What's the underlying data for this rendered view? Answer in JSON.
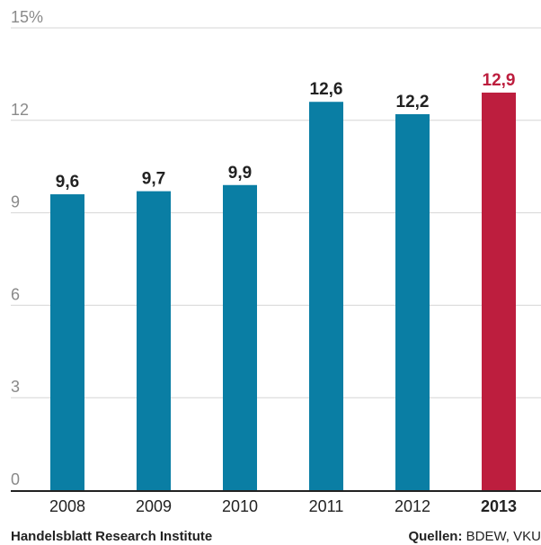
{
  "chart_data": {
    "type": "bar",
    "categories": [
      "2008",
      "2009",
      "2010",
      "2011",
      "2012",
      "2013"
    ],
    "values": [
      9.6,
      9.7,
      9.9,
      12.6,
      12.2,
      12.9
    ],
    "value_labels": [
      "9,6",
      "9,7",
      "9,9",
      "12,6",
      "12,2",
      "12,9"
    ],
    "highlight_index": 5,
    "ylim": [
      0,
      15
    ],
    "yticks": [
      0,
      3,
      6,
      9,
      12,
      15
    ],
    "ytick_labels": [
      "0",
      "3",
      "6",
      "9",
      "12",
      "15%"
    ],
    "grid": true,
    "colors": {
      "bar": "#0a7ea4",
      "highlight": "#bd1e3e",
      "grid": "#d6d6d6",
      "tick_text": "#8a8a8a",
      "axis": "#222222",
      "label_text": "#222222"
    }
  },
  "footer": {
    "credit": "Handelsblatt Research Institute",
    "sources_label": "Quellen:",
    "sources_value": " BDEW, VKU"
  }
}
